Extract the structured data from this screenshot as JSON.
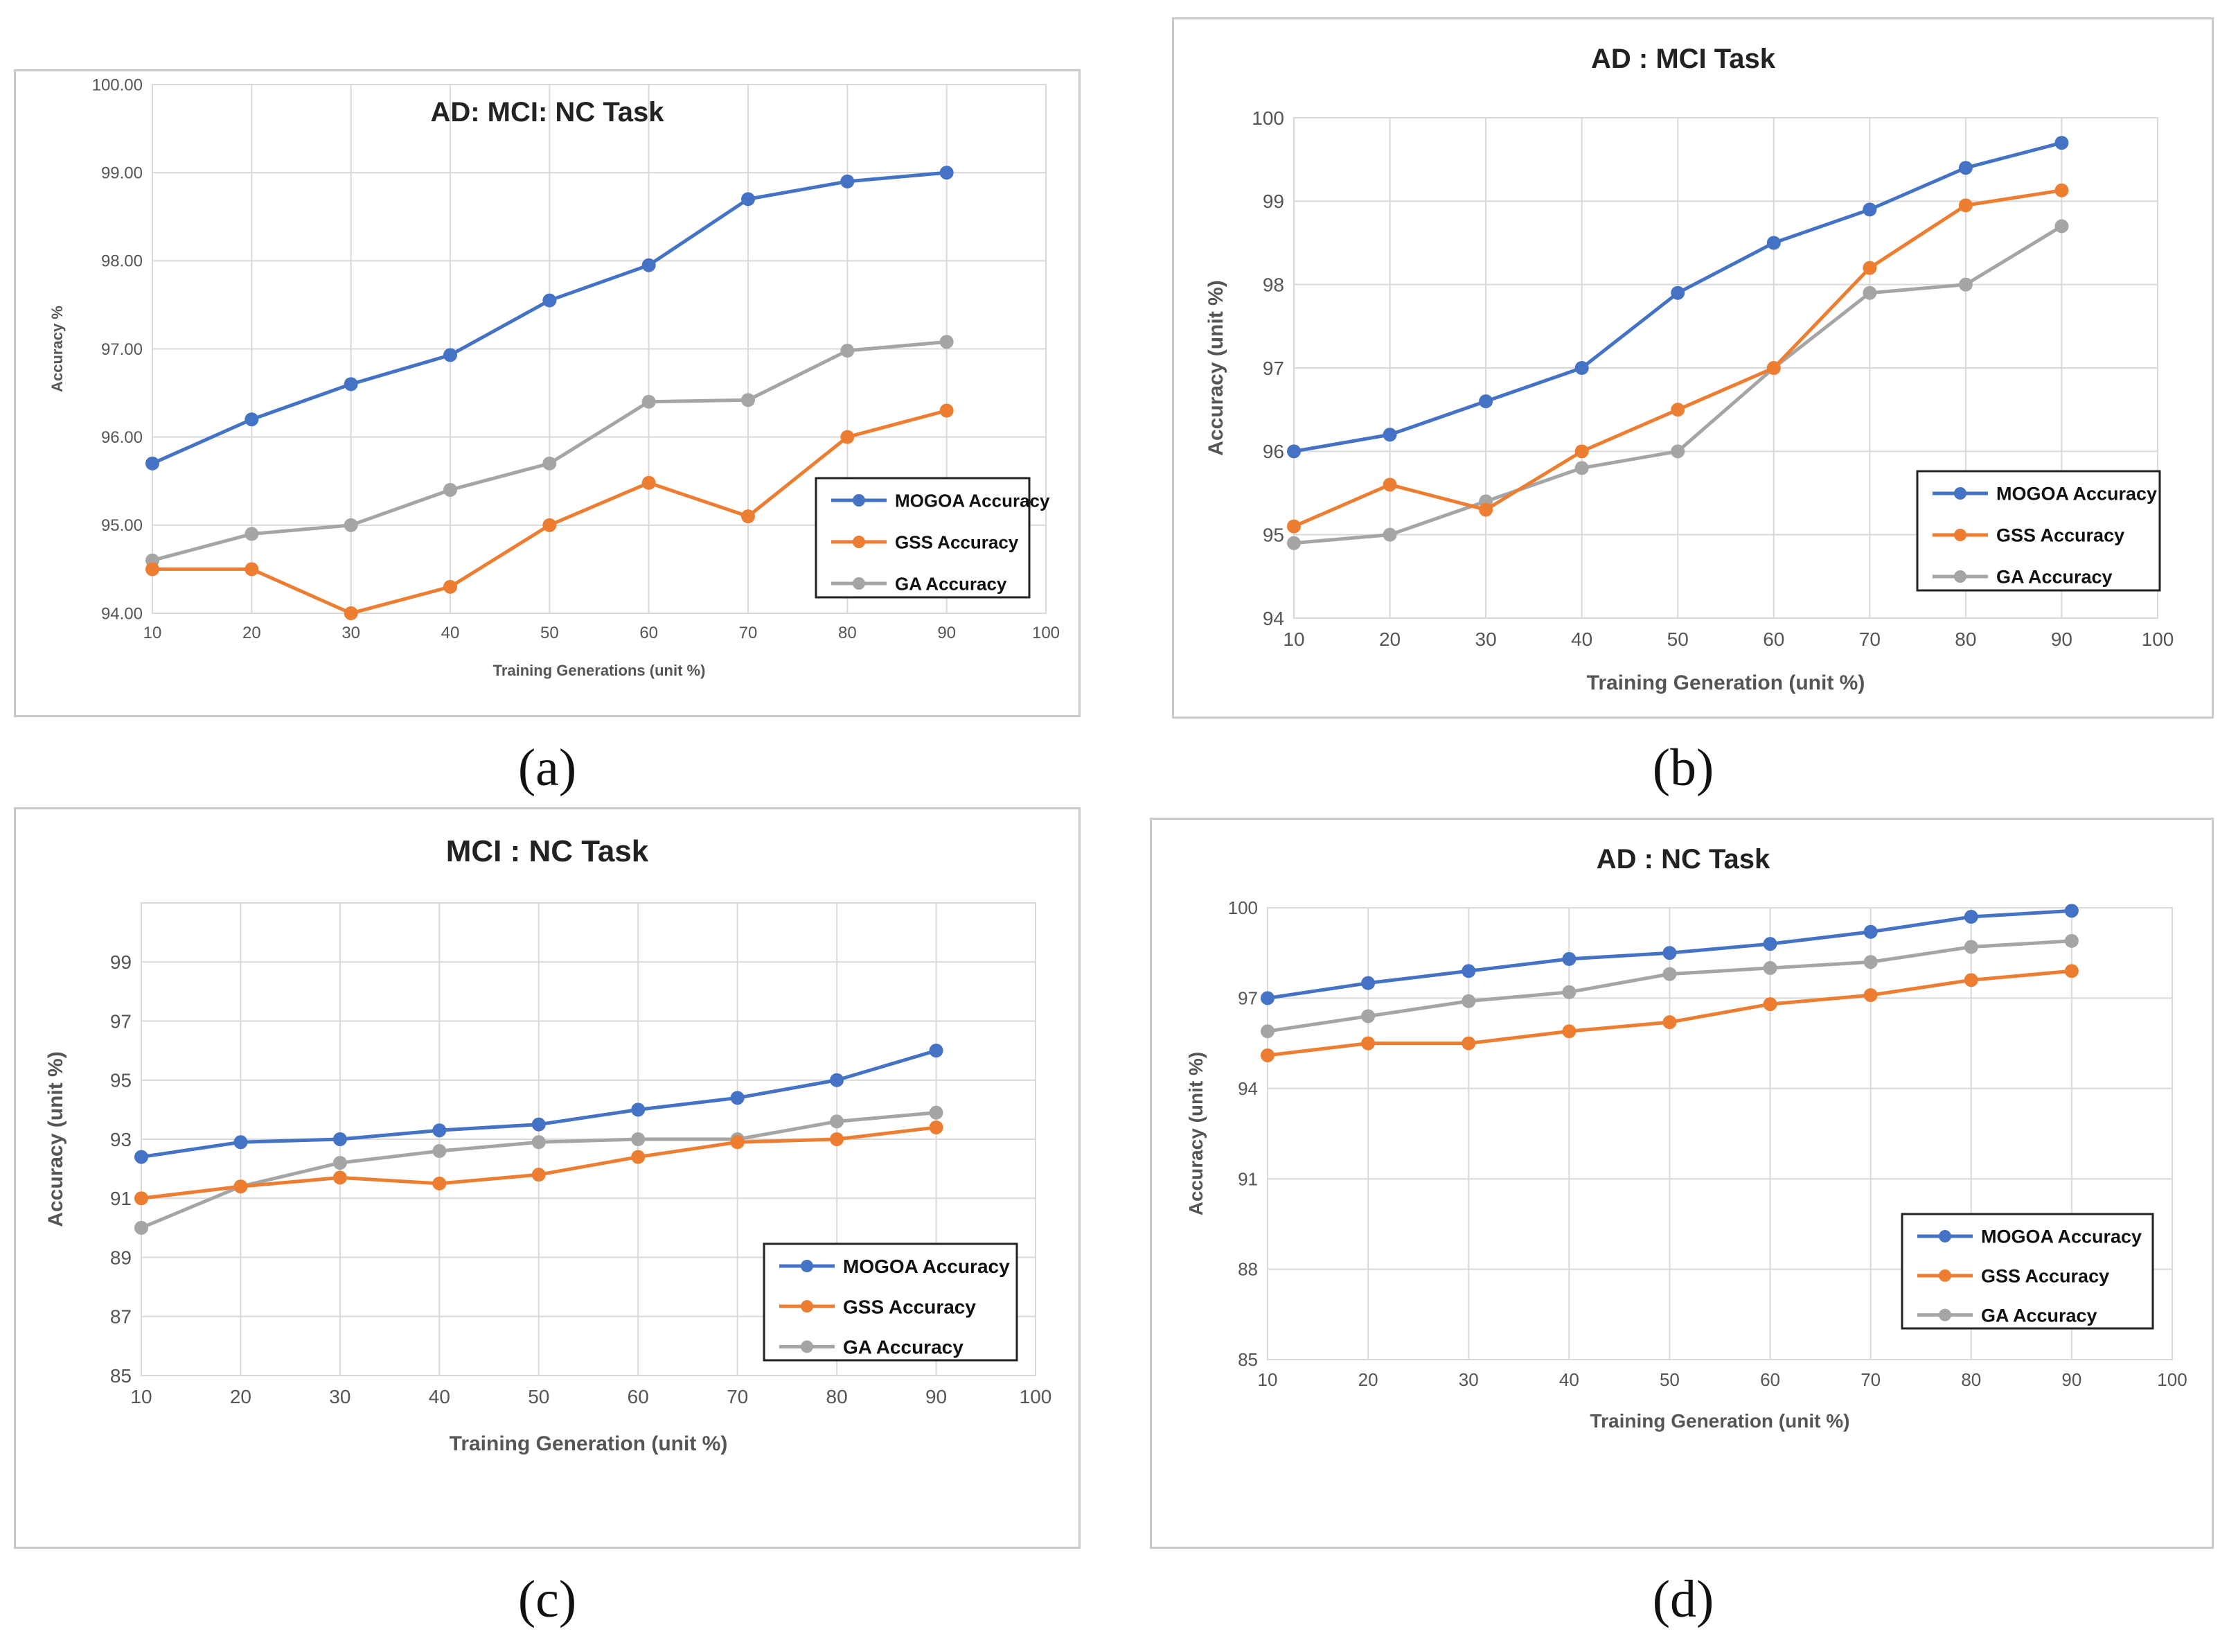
{
  "colors": {
    "MOGOA Accuracy": "#4472c4",
    "GSS Accuracy": "#ed7d31",
    "GA Accuracy": "#a5a5a5"
  },
  "captions": [
    "(a)",
    "(b)",
    "(c)",
    "(d)"
  ],
  "chart_data": [
    {
      "type": "line",
      "title": "AD: MCI: NC Task",
      "xlabel": "Training Generations (unit %)",
      "ylabel": "Accuracy %",
      "xlim": [
        10,
        100
      ],
      "ylim": [
        94,
        100
      ],
      "xticks": [
        "10",
        "20",
        "30",
        "40",
        "50",
        "60",
        "70",
        "80",
        "90",
        "100"
      ],
      "yticks": [
        "94.00",
        "95.00",
        "96.00",
        "97.00",
        "98.00",
        "99.00",
        "100.00"
      ],
      "grid": true,
      "legend": "bottom-right",
      "x": [
        10,
        20,
        30,
        40,
        50,
        60,
        70,
        80,
        90
      ],
      "series": [
        {
          "name": "MOGOA Accuracy",
          "values": [
            95.7,
            96.2,
            96.6,
            96.93,
            97.55,
            97.95,
            98.7,
            98.9,
            99.0
          ]
        },
        {
          "name": "GSS Accuracy",
          "values": [
            94.5,
            94.5,
            94.0,
            94.3,
            95.0,
            95.48,
            95.1,
            96.0,
            96.3
          ]
        },
        {
          "name": "GA Accuracy",
          "values": [
            94.6,
            94.9,
            95.0,
            95.4,
            95.7,
            96.4,
            96.42,
            96.98,
            97.08
          ]
        }
      ]
    },
    {
      "type": "line",
      "title": "AD : MCI Task",
      "xlabel": "Training Generation (unit %)",
      "ylabel": "Accuracy (unit %)",
      "xlim": [
        10,
        100
      ],
      "ylim": [
        94,
        100
      ],
      "xticks": [
        "10",
        "20",
        "30",
        "40",
        "50",
        "60",
        "70",
        "80",
        "90",
        "100"
      ],
      "yticks": [
        "94",
        "95",
        "96",
        "97",
        "98",
        "99",
        "100"
      ],
      "grid": true,
      "legend": "bottom-right",
      "x": [
        10,
        20,
        30,
        40,
        50,
        60,
        70,
        80,
        90
      ],
      "series": [
        {
          "name": "MOGOA Accuracy",
          "values": [
            96.0,
            96.2,
            96.6,
            97.0,
            97.9,
            98.5,
            98.9,
            99.4,
            99.7
          ]
        },
        {
          "name": "GSS Accuracy",
          "values": [
            95.1,
            95.6,
            95.3,
            96.0,
            96.5,
            97.0,
            98.2,
            98.95,
            99.13
          ]
        },
        {
          "name": "GA Accuracy",
          "values": [
            94.9,
            95.0,
            95.4,
            95.8,
            96.0,
            97.0,
            97.9,
            98.0,
            98.7
          ]
        }
      ]
    },
    {
      "type": "line",
      "title": "MCI : NC Task",
      "xlabel": "Training Generation (unit %)",
      "ylabel": "Accuracy (unit %)",
      "xlim": [
        10,
        100
      ],
      "ylim": [
        85,
        101
      ],
      "xticks": [
        "10",
        "20",
        "30",
        "40",
        "50",
        "60",
        "70",
        "80",
        "90",
        "100"
      ],
      "yticks": [
        "85",
        "87",
        "89",
        "91",
        "93",
        "95",
        "97",
        "99"
      ],
      "grid": true,
      "legend": "bottom-right",
      "x": [
        10,
        20,
        30,
        40,
        50,
        60,
        70,
        80,
        90
      ],
      "series": [
        {
          "name": "MOGOA Accuracy",
          "values": [
            92.4,
            92.9,
            93.0,
            93.3,
            93.5,
            94.0,
            94.4,
            95.0,
            96.0
          ]
        },
        {
          "name": "GSS Accuracy",
          "values": [
            91.0,
            91.4,
            91.7,
            91.5,
            91.8,
            92.4,
            92.9,
            93.0,
            93.4
          ]
        },
        {
          "name": "GA Accuracy",
          "values": [
            90.0,
            91.4,
            92.2,
            92.6,
            92.9,
            93.0,
            93.0,
            93.6,
            93.9
          ]
        }
      ]
    },
    {
      "type": "line",
      "title": "AD : NC  Task",
      "xlabel": "Training Generation (unit %)",
      "ylabel": "Accuracy (unit %)",
      "xlim": [
        10,
        100
      ],
      "ylim": [
        85,
        100
      ],
      "xticks": [
        "10",
        "20",
        "30",
        "40",
        "50",
        "60",
        "70",
        "80",
        "90",
        "100"
      ],
      "yticks": [
        "85",
        "88",
        "91",
        "94",
        "97",
        "100"
      ],
      "grid": true,
      "legend": "bottom-right",
      "x": [
        10,
        20,
        30,
        40,
        50,
        60,
        70,
        80,
        90
      ],
      "series": [
        {
          "name": "MOGOA Accuracy",
          "values": [
            97.0,
            97.5,
            97.9,
            98.3,
            98.5,
            98.8,
            99.2,
            99.7,
            99.9
          ]
        },
        {
          "name": "GSS Accuracy",
          "values": [
            95.1,
            95.5,
            95.5,
            95.9,
            96.2,
            96.8,
            97.1,
            97.6,
            97.9
          ]
        },
        {
          "name": "GA Accuracy",
          "values": [
            95.9,
            96.4,
            96.9,
            97.2,
            97.8,
            98.0,
            98.2,
            98.7,
            98.9
          ]
        }
      ]
    }
  ]
}
